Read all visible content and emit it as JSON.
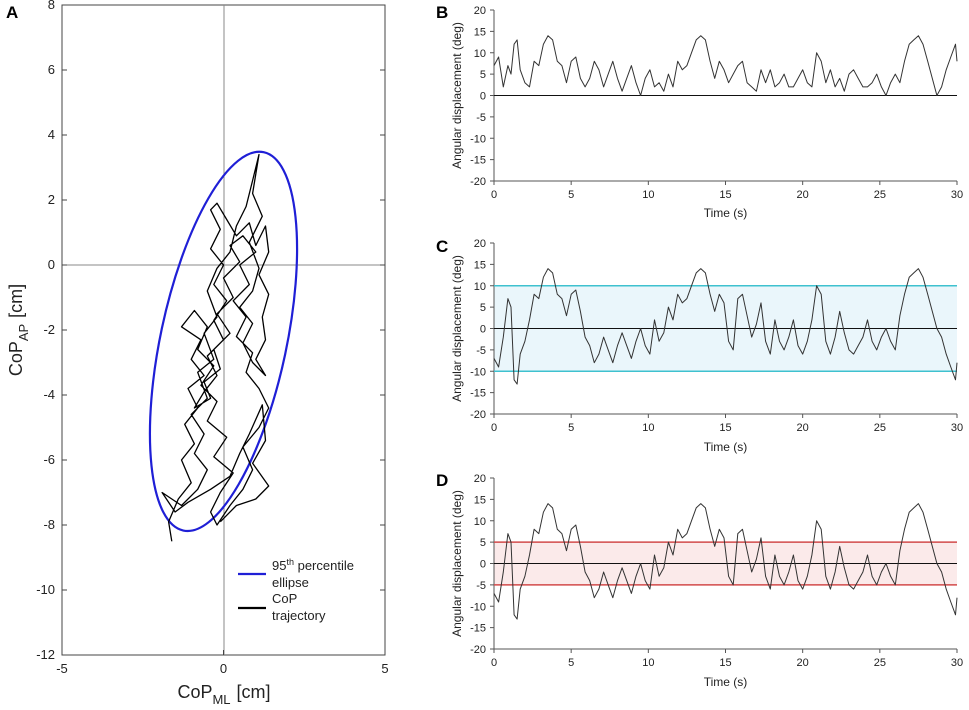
{
  "chart_data": [
    {
      "panel": "A",
      "type": "scatter",
      "xlabel": "CoP",
      "xlabel_sub": "ML",
      "xlabel_unit": "[cm]",
      "ylabel": "CoP",
      "ylabel_sub": "AP",
      "ylabel_unit": "[cm]",
      "xlim": [
        -5,
        5
      ],
      "ylim": [
        -12,
        8
      ],
      "xticks": [
        "-5",
        "0",
        "5"
      ],
      "yticks": [
        "-12",
        "-10",
        "-8",
        "-6",
        "-4",
        "-2",
        "0",
        "2",
        "4",
        "6",
        "8"
      ],
      "legend_position": "bottom-right",
      "legend": [
        {
          "line1_pre": "95",
          "line1_sup": "th",
          "line1_post": " percentile",
          "line2": "ellipse",
          "color": "#1f1fd6"
        },
        {
          "line1_pre": "CoP",
          "line1_sup": "",
          "line1_post": "",
          "line2": "trajectory",
          "color": "#000000"
        }
      ],
      "ellipse": {
        "center": [
          0.0,
          -2.35
        ],
        "rx": 1.95,
        "ry": 5.95,
        "angle_deg": -12
      },
      "trajectory": [
        [
          -1.6,
          -8.5
        ],
        [
          -1.7,
          -7.9
        ],
        [
          -1.4,
          -7.2
        ],
        [
          -1.0,
          -6.7
        ],
        [
          -1.3,
          -6.0
        ],
        [
          -0.9,
          -5.5
        ],
        [
          -1.2,
          -4.9
        ],
        [
          -0.8,
          -4.4
        ],
        [
          -1.1,
          -3.8
        ],
        [
          -0.6,
          -3.4
        ],
        [
          -1.0,
          -2.9
        ],
        [
          -0.7,
          -2.3
        ],
        [
          -1.3,
          -1.9
        ],
        [
          -0.9,
          -1.4
        ],
        [
          -0.5,
          -1.9
        ],
        [
          -0.8,
          -2.6
        ],
        [
          -0.3,
          -3.1
        ],
        [
          -0.7,
          -3.7
        ],
        [
          -0.2,
          -4.2
        ],
        [
          -0.5,
          -4.8
        ],
        [
          0.1,
          -5.3
        ],
        [
          -0.3,
          -5.9
        ],
        [
          0.3,
          -6.4
        ],
        [
          -0.1,
          -7.0
        ],
        [
          -0.4,
          -7.6
        ],
        [
          -0.2,
          -8.0
        ],
        [
          0.2,
          -7.4
        ],
        [
          0.6,
          -6.9
        ],
        [
          0.9,
          -6.3
        ],
        [
          0.6,
          -5.6
        ],
        [
          1.1,
          -5.0
        ],
        [
          1.4,
          -4.4
        ],
        [
          1.1,
          -3.8
        ],
        [
          0.7,
          -3.3
        ],
        [
          0.9,
          -2.7
        ],
        [
          0.4,
          -2.2
        ],
        [
          0.7,
          -1.6
        ],
        [
          0.3,
          -1.1
        ],
        [
          0.8,
          -0.6
        ],
        [
          0.5,
          0.0
        ],
        [
          1.0,
          0.4
        ],
        [
          0.6,
          0.9
        ],
        [
          0.2,
          0.6
        ],
        [
          0.5,
          0.1
        ],
        [
          0.0,
          -0.4
        ],
        [
          0.3,
          -1.0
        ],
        [
          -0.2,
          -1.5
        ],
        [
          0.2,
          -2.1
        ],
        [
          -0.3,
          -2.6
        ],
        [
          -0.1,
          -3.2
        ],
        [
          -0.6,
          -3.6
        ],
        [
          -0.4,
          -4.1
        ],
        [
          -0.9,
          -4.4
        ],
        [
          -0.6,
          -3.9
        ],
        [
          -0.2,
          -3.4
        ],
        [
          -0.5,
          -2.8
        ],
        [
          0.0,
          -2.3
        ],
        [
          -0.3,
          -1.7
        ],
        [
          0.1,
          -1.1
        ],
        [
          -0.3,
          -0.6
        ],
        [
          0.0,
          0.0
        ],
        [
          -0.4,
          0.5
        ],
        [
          -0.1,
          1.1
        ],
        [
          -0.4,
          1.7
        ],
        [
          -0.2,
          1.9
        ],
        [
          0.1,
          1.4
        ],
        [
          0.4,
          0.9
        ],
        [
          0.8,
          1.3
        ],
        [
          1.0,
          0.6
        ],
        [
          1.3,
          1.2
        ],
        [
          1.4,
          0.4
        ],
        [
          1.1,
          -0.3
        ],
        [
          1.4,
          -0.9
        ],
        [
          1.2,
          -1.6
        ],
        [
          1.3,
          -2.3
        ],
        [
          1.0,
          -2.9
        ],
        [
          1.3,
          -3.4
        ],
        [
          0.9,
          -3.0
        ],
        [
          0.6,
          -2.4
        ],
        [
          0.9,
          -1.8
        ],
        [
          0.5,
          -1.3
        ],
        [
          0.9,
          -0.8
        ],
        [
          1.1,
          -0.1
        ],
        [
          0.8,
          0.7
        ],
        [
          1.2,
          1.5
        ],
        [
          0.9,
          2.2
        ],
        [
          1.0,
          2.8
        ],
        [
          1.1,
          3.4
        ],
        [
          0.9,
          2.6
        ],
        [
          0.7,
          1.8
        ],
        [
          0.4,
          1.2
        ],
        [
          0.2,
          0.4
        ],
        [
          -0.2,
          -0.1
        ],
        [
          -0.5,
          -0.8
        ],
        [
          -0.2,
          -1.6
        ],
        [
          -0.6,
          -2.1
        ],
        [
          -0.3,
          -2.9
        ],
        [
          -0.8,
          -3.3
        ],
        [
          -0.5,
          -4.1
        ],
        [
          -1.0,
          -4.6
        ],
        [
          -0.6,
          -5.2
        ],
        [
          -0.9,
          -5.8
        ],
        [
          -0.5,
          -6.3
        ],
        [
          -0.8,
          -6.9
        ],
        [
          -1.3,
          -7.4
        ],
        [
          -1.9,
          -7.0
        ],
        [
          -1.5,
          -7.6
        ],
        [
          -1.1,
          -7.3
        ],
        [
          -0.4,
          -6.9
        ],
        [
          0.2,
          -6.5
        ],
        [
          0.5,
          -5.8
        ],
        [
          0.8,
          -5.2
        ],
        [
          1.2,
          -4.3
        ],
        [
          1.3,
          -5.4
        ],
        [
          0.9,
          -6.1
        ],
        [
          1.4,
          -6.8
        ],
        [
          1.0,
          -7.2
        ],
        [
          0.4,
          -7.4
        ],
        [
          -0.1,
          -7.9
        ]
      ]
    },
    {
      "panel": "B",
      "type": "line",
      "xlabel": "Time (s)",
      "ylabel": "Angular displacement (deg)",
      "xlim": [
        0,
        30
      ],
      "ylim": [
        -20,
        20
      ],
      "xticks": [
        "0",
        "5",
        "10",
        "15",
        "20",
        "25",
        "30"
      ],
      "yticks": [
        "-20",
        "-15",
        "-10",
        "-5",
        "0",
        "5",
        "10",
        "15",
        "20"
      ],
      "band": null,
      "rectified": true
    },
    {
      "panel": "C",
      "type": "line",
      "xlabel": "Time (s)",
      "ylabel": "Angular displacement (deg)",
      "xlim": [
        0,
        30
      ],
      "ylim": [
        -20,
        20
      ],
      "xticks": [
        "0",
        "5",
        "10",
        "15",
        "20",
        "25",
        "30"
      ],
      "yticks": [
        "-20",
        "-15",
        "-10",
        "-5",
        "0",
        "5",
        "10",
        "15",
        "20"
      ],
      "band": {
        "low": -10,
        "high": 10,
        "line_color": "#3fc1cf",
        "fill_color": "#eaf6fb"
      },
      "rectified": false
    },
    {
      "panel": "D",
      "type": "line",
      "xlabel": "Time (s)",
      "ylabel": "Angular displacement (deg)",
      "xlim": [
        0,
        30
      ],
      "ylim": [
        -20,
        20
      ],
      "xticks": [
        "0",
        "5",
        "10",
        "15",
        "20",
        "25",
        "30"
      ],
      "yticks": [
        "-20",
        "-15",
        "-10",
        "-5",
        "0",
        "5",
        "10",
        "15",
        "20"
      ],
      "band": {
        "low": -5,
        "high": 5,
        "line_color": "#d24a4a",
        "fill_color": "#fbeaea"
      },
      "rectified": false
    }
  ],
  "signal": {
    "t": [
      0,
      0.3,
      0.6,
      0.9,
      1.1,
      1.3,
      1.5,
      1.7,
      2.0,
      2.3,
      2.6,
      2.9,
      3.2,
      3.5,
      3.8,
      4.1,
      4.4,
      4.7,
      5.0,
      5.3,
      5.6,
      5.9,
      6.2,
      6.5,
      6.8,
      7.1,
      7.4,
      7.7,
      8.0,
      8.3,
      8.6,
      8.9,
      9.2,
      9.5,
      9.8,
      10.1,
      10.4,
      10.7,
      11.0,
      11.3,
      11.6,
      11.9,
      12.2,
      12.5,
      12.8,
      13.1,
      13.4,
      13.7,
      14.0,
      14.3,
      14.6,
      14.9,
      15.2,
      15.5,
      15.8,
      16.1,
      16.4,
      16.7,
      17.0,
      17.3,
      17.6,
      17.9,
      18.2,
      18.5,
      18.8,
      19.1,
      19.4,
      19.7,
      20.0,
      20.3,
      20.6,
      20.9,
      21.2,
      21.5,
      21.8,
      22.1,
      22.4,
      22.7,
      23.0,
      23.3,
      23.6,
      23.9,
      24.2,
      24.5,
      24.8,
      25.1,
      25.4,
      25.7,
      26.0,
      26.3,
      26.6,
      26.9,
      27.2,
      27.5,
      27.8,
      28.1,
      28.4,
      28.7,
      29.0,
      29.3,
      29.6,
      29.9,
      30.0
    ],
    "angle": [
      -7,
      -9,
      -2,
      7,
      5,
      -12,
      -13,
      -6,
      -3,
      2,
      8,
      7,
      12,
      14,
      13,
      8,
      7,
      3,
      8,
      9,
      4,
      -2,
      -4,
      -8,
      -6,
      -2,
      -5,
      -8,
      -4,
      -1,
      -4,
      -7,
      -3,
      0,
      -4,
      -6,
      2,
      -3,
      -1,
      5,
      2,
      8,
      6,
      7,
      10,
      13,
      14,
      13,
      8,
      4,
      8,
      6,
      -3,
      -5,
      7,
      8,
      3,
      -2,
      1,
      6,
      -3,
      -6,
      2,
      -3,
      -5,
      -2,
      2,
      -4,
      -6,
      -3,
      2,
      10,
      8,
      -3,
      -6,
      -2,
      4,
      -1,
      -5,
      -6,
      -4,
      -2,
      2,
      -3,
      -5,
      -2,
      0,
      -3,
      -5,
      3,
      8,
      12,
      13,
      14,
      12,
      8,
      4,
      0,
      -2,
      -6,
      -9,
      -12,
      -8
    ]
  }
}
